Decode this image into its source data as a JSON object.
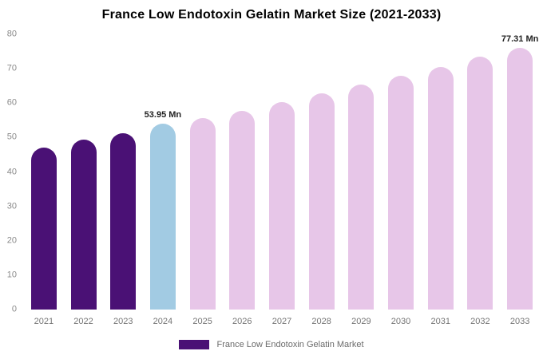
{
  "title": "France Low Endotoxin Gelatin Market Size (2021-2033)",
  "legend": {
    "label": "France Low Endotoxin Gelatin Market",
    "color": "#4a1175"
  },
  "chart_data": {
    "type": "bar",
    "title": "France Low Endotoxin Gelatin Market Size (2021-2033)",
    "categories": [
      "2021",
      "2022",
      "2023",
      "2024",
      "2025",
      "2026",
      "2027",
      "2028",
      "2029",
      "2030",
      "2031",
      "2032",
      "2033"
    ],
    "values": [
      47.0,
      49.3,
      51.2,
      53.95,
      55.6,
      57.7,
      60.3,
      62.8,
      65.5,
      67.9,
      70.6,
      73.5,
      77.31
    ],
    "unit": "Mn",
    "xlabel": "",
    "ylabel": "",
    "ylim": [
      0,
      80
    ],
    "yticks": [
      0,
      10,
      20,
      30,
      40,
      50,
      60,
      70,
      80
    ],
    "grid": false,
    "legend_position": "bottom",
    "bar_colors": [
      "#4a1175",
      "#4a1175",
      "#4a1175",
      "#a2cbe3",
      "#e7c6e8",
      "#e7c6e8",
      "#e7c6e8",
      "#e7c6e8",
      "#e7c6e8",
      "#e7c6e8",
      "#e7c6e8",
      "#e7c6e8",
      "#e7c6e8"
    ],
    "color_meaning": {
      "historical": "#4a1175",
      "base_year": "#a2cbe3",
      "forecast": "#e7c6e8"
    },
    "annotations": [
      {
        "category": "2024",
        "label": "53.95 Mn"
      },
      {
        "category": "2033",
        "label": "77.31 Mn"
      }
    ]
  }
}
